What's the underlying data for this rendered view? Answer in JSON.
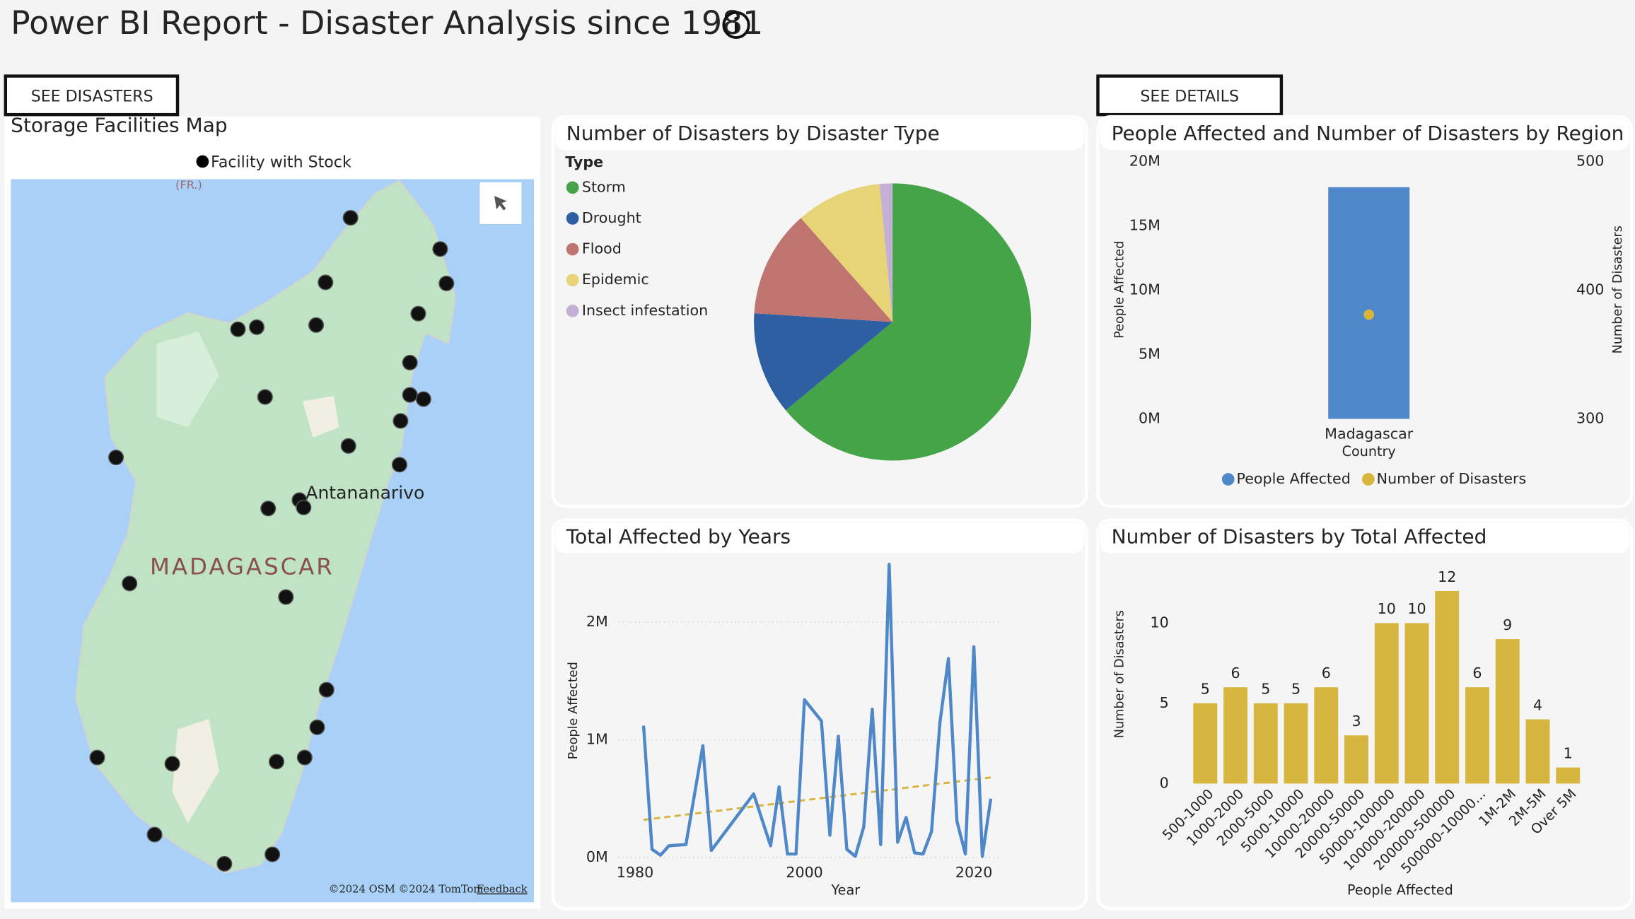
{
  "title": "Power BI Report - Disaster Analysis since 1981",
  "buttons": [
    "SEE DISASTERS",
    "SEE DETAILS"
  ],
  "map": {
    "title": "Storage Facilities Map",
    "legend": "Facility with Stock",
    "city": "Antananarivo",
    "country": "MADAGASCAR",
    "region_label": "(FR.)",
    "attribution": "©2024 OSM  ©2024 TomTom",
    "feedback": "Feedback"
  },
  "chart_data": [
    {
      "type": "pie",
      "title": "Number of Disasters by Disaster Type",
      "legend_title": "Type",
      "categories": [
        "Storm",
        "Drought",
        "Flood",
        "Epidemic",
        "Insect infestation"
      ],
      "values": [
        64,
        12,
        12.5,
        10,
        1.5
      ],
      "colors": [
        "#45a348",
        "#2e5fa3",
        "#c0746f",
        "#e6d477",
        "#c5b0d5"
      ]
    },
    {
      "type": "combo",
      "title": "People Affected and Number of Disasters by Region",
      "categories": [
        "Madagascar"
      ],
      "xlabel": "Country",
      "ylabel": "People Affected",
      "y2label": "Number of Disasters",
      "series": [
        {
          "name": "People Affected",
          "color": "#4f88c8",
          "values": [
            18000000
          ]
        },
        {
          "name": "Number of Disasters",
          "color": "#d9b43b",
          "axis": "y2",
          "values": [
            381
          ]
        }
      ],
      "ylim": [
        0,
        20000000
      ],
      "yticks": [
        {
          "value": 0,
          "label": "0M"
        },
        {
          "value": 5000000,
          "label": "5M"
        },
        {
          "value": 10000000,
          "label": "10M"
        },
        {
          "value": 15000000,
          "label": "15M"
        },
        {
          "value": 20000000,
          "label": "20M"
        }
      ],
      "y2lim": [
        300,
        500
      ],
      "y2ticks": [
        300,
        400,
        500
      ],
      "grid": false
    },
    {
      "type": "line",
      "title": "Total Affected by Years",
      "xlabel": "Year",
      "ylabel": "People Affected",
      "color": "#4f88c8",
      "x": [
        1981,
        1982,
        1983,
        1984,
        1986,
        1988,
        1989,
        1994,
        1996,
        1997,
        1998,
        1999,
        2000,
        2002,
        2003,
        2004,
        2005,
        2006,
        2007,
        2008,
        2009,
        2010,
        2011,
        2012,
        2013,
        2014,
        2015,
        2016,
        2017,
        2018,
        2019,
        2020,
        2021,
        2022
      ],
      "values": [
        1120000,
        70000,
        20000,
        100000,
        110000,
        950000,
        60000,
        540000,
        100000,
        600000,
        30000,
        30000,
        1340000,
        1160000,
        190000,
        1030000,
        70000,
        10000,
        260000,
        1260000,
        110000,
        2490000,
        130000,
        340000,
        40000,
        30000,
        220000,
        1150000,
        1690000,
        310000,
        30000,
        1790000,
        10000,
        500000
      ],
      "trendline": {
        "x": [
          1981,
          2022
        ],
        "values": [
          320000,
          680000
        ],
        "color": "#d9b43b"
      },
      "xlim": [
        1978,
        2024
      ],
      "xticks": [
        1980,
        2000,
        2020
      ],
      "ylim": [
        0,
        2500000
      ],
      "yticks": [
        {
          "value": 0,
          "label": "0M"
        },
        {
          "value": 1000000,
          "label": "1M"
        },
        {
          "value": 2000000,
          "label": "2M"
        }
      ],
      "grid": true
    },
    {
      "type": "bar",
      "title": "Number of Disasters by Total Affected",
      "xlabel": "People Affected",
      "ylabel": "Number of Disasters",
      "color": "#d6b63e",
      "categories": [
        "500-1000",
        "1000-2000",
        "2000-5000",
        "5000-10000",
        "10000-20000",
        "20000-50000",
        "50000-100000",
        "100000-200000",
        "200000-500000",
        "500000-10000...",
        "1M-2M",
        "2M-5M",
        "Over 5M"
      ],
      "values": [
        5,
        6,
        5,
        5,
        6,
        3,
        10,
        10,
        12,
        6,
        9,
        4,
        1
      ],
      "ylim": [
        0,
        12.5
      ],
      "yticks": [
        0,
        5,
        10
      ],
      "grid": false
    }
  ]
}
